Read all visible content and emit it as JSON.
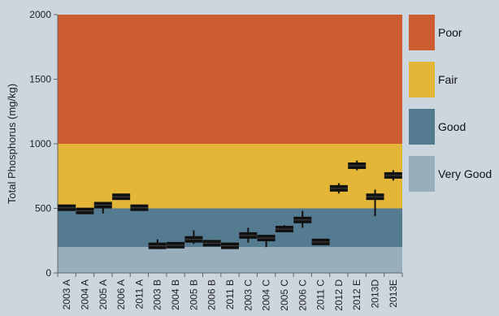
{
  "chart_data": {
    "type": "box",
    "ylabel": "Total Phosphorus (mg/kg)",
    "ylim": [
      0,
      2000
    ],
    "yticks": [
      0,
      500,
      1000,
      1500,
      2000
    ],
    "bands": [
      {
        "label": "Poor",
        "from": 1000,
        "to": 2000,
        "color": "#cd5c30"
      },
      {
        "label": "Fair",
        "from": 500,
        "to": 1000,
        "color": "#e3b637"
      },
      {
        "label": "Good",
        "from": 200,
        "to": 500,
        "color": "#557b91"
      },
      {
        "label": "Very Good",
        "from": 0,
        "to": 200,
        "color": "#98aebc"
      }
    ],
    "categories": [
      "2003 A",
      "2004 A",
      "2005 A",
      "2006 A",
      "2011 A",
      "2003 B",
      "2004 B",
      "2005 B",
      "2006 B",
      "2011 B",
      "2003 C",
      "2004 C",
      "2005 C",
      "2006 C",
      "2011 C",
      "2012 D",
      "2012 E",
      "2013D",
      "2013E"
    ],
    "median": [
      505,
      480,
      525,
      590,
      505,
      210,
      215,
      260,
      230,
      210,
      290,
      270,
      340,
      410,
      240,
      655,
      830,
      590,
      755
    ],
    "low": [
      485,
      460,
      460,
      580,
      495,
      185,
      190,
      225,
      225,
      195,
      235,
      200,
      320,
      350,
      230,
      615,
      795,
      440,
      715
    ],
    "high": [
      520,
      500,
      540,
      600,
      515,
      260,
      230,
      330,
      240,
      220,
      350,
      290,
      370,
      480,
      250,
      695,
      870,
      645,
      795
    ]
  }
}
